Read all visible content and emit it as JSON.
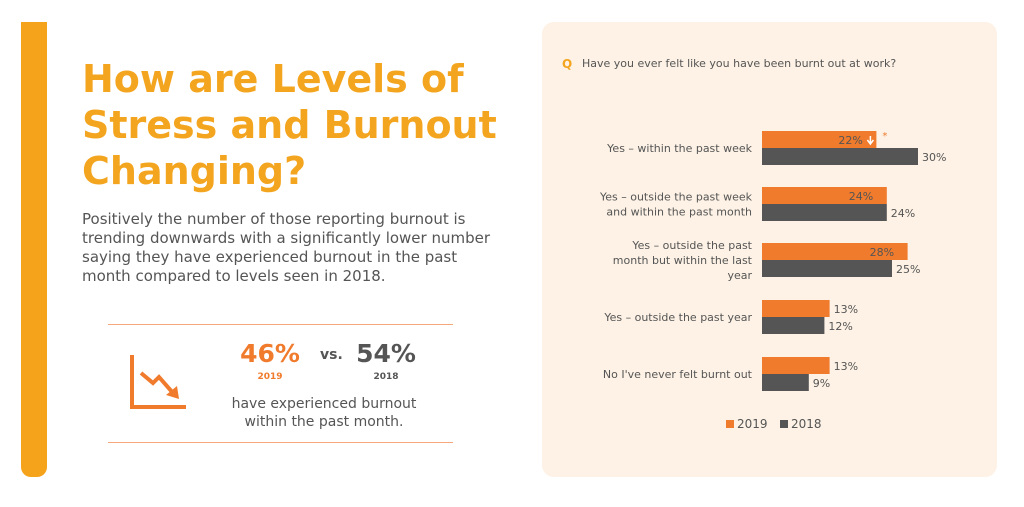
{
  "left": {
    "headline": "How are Levels of Stress and Burnout Changing?",
    "body": "Positively the number of those reporting burnout is trending downwards with a significantly lower number saying they have experienced burnout in the past month compared to levels seen in 2018.",
    "stat": {
      "value_a": "46%",
      "year_a": "2019",
      "vs": "vs.",
      "value_b": "54%",
      "year_b": "2018",
      "caption": "have experienced burnout within the past month."
    },
    "icon": "downward-trend-chart-icon"
  },
  "right": {
    "q_mark": "Q",
    "question": "Have you ever felt like you have been burnt out at work?",
    "significance_marker": "*"
  },
  "colors": {
    "accent": "#f4a51f",
    "series_2019": "#f07b2c",
    "series_2018": "#555555",
    "panel_bg": "#fdf2e5"
  },
  "chart_data": {
    "type": "bar",
    "orientation": "horizontal",
    "categories": [
      [
        "Yes – within the past week"
      ],
      [
        "Yes – outside the past week",
        "and within the past month"
      ],
      [
        "Yes – outside the past",
        "month but within the last",
        "year"
      ],
      [
        "Yes – outside the past year"
      ],
      [
        "No I've never felt burnt out"
      ]
    ],
    "series": [
      {
        "name": "2019",
        "values": [
          22,
          24,
          28,
          13,
          13
        ]
      },
      {
        "name": "2018",
        "values": [
          30,
          24,
          25,
          12,
          9
        ]
      }
    ],
    "value_suffix": "%",
    "legend": "bottom",
    "grid": false
  }
}
